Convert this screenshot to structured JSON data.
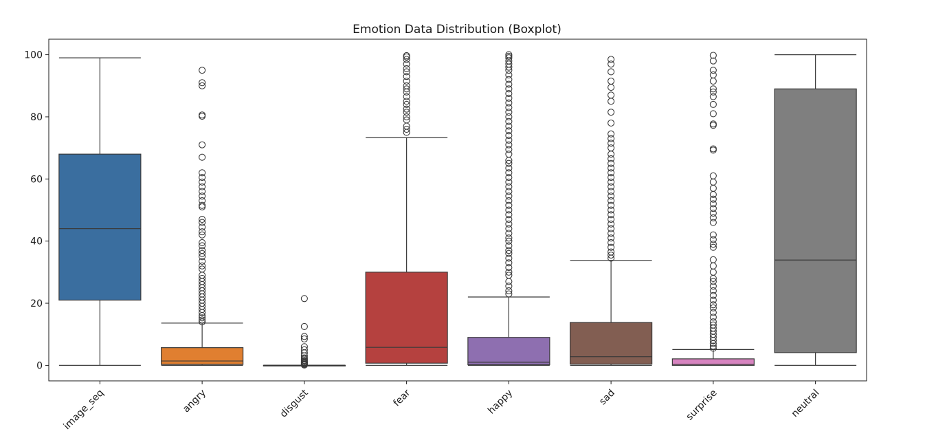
{
  "chart_data": {
    "type": "boxplot",
    "title": "Emotion Data Distribution (Boxplot)",
    "xlabel": "",
    "ylabel": "",
    "ylim": [
      -5,
      105
    ],
    "yticks": [
      0,
      20,
      40,
      60,
      80,
      100
    ],
    "grid": false,
    "categories": [
      "image_seq",
      "angry",
      "disgust",
      "fear",
      "happy",
      "sad",
      "surprise",
      "neutral"
    ],
    "colors": [
      "#3a6e9f",
      "#e07f30",
      "#3f9a3f",
      "#b5413f",
      "#8e6fb0",
      "#825e52",
      "#d784c0",
      "#7f7f7f"
    ],
    "boxes": [
      {
        "name": "image_seq",
        "whisker_low": 0,
        "q1": 21,
        "median": 44,
        "q3": 68,
        "whisker_high": 99,
        "outliers": []
      },
      {
        "name": "angry",
        "whisker_low": 0,
        "q1": 0.3,
        "median": 1.4,
        "q3": 5.7,
        "whisker_high": 13.6,
        "outliers": [
          14.0,
          14.6,
          15.3,
          16.0,
          17.0,
          18.0,
          19.0,
          20.0,
          21.0,
          22.0,
          23.0,
          24.0,
          25.0,
          26.0,
          27.0,
          28.0,
          29.0,
          31.0,
          32.0,
          33.5,
          35.0,
          36.0,
          37.0,
          38.5,
          39.5,
          42.0,
          43.0,
          44.5,
          46.0,
          47.0,
          51.0,
          51.5,
          53.0,
          54.5,
          56.0,
          57.5,
          59.0,
          60.5,
          62.0,
          67.0,
          71.0,
          80.2,
          80.6,
          90.0,
          91.0,
          95.0
        ]
      },
      {
        "name": "disgust",
        "whisker_low": 0,
        "q1": 0,
        "median": 0,
        "q3": 0,
        "whisker_high": 0,
        "outliers": [
          0.1,
          0.3,
          0.5,
          0.8,
          1.0,
          1.3,
          1.6,
          2.0,
          2.4,
          3.0,
          4.0,
          5.0,
          6.0,
          8.5,
          9.3,
          12.5,
          21.5
        ]
      },
      {
        "name": "fear",
        "whisker_low": 0,
        "q1": 0.7,
        "median": 5.8,
        "q3": 30,
        "whisker_high": 73.3,
        "outliers": [
          75.0,
          76.0,
          77.0,
          79.0,
          80.0,
          81.5,
          82.5,
          84.0,
          85.0,
          86.5,
          88.0,
          89.0,
          90.0,
          91.5,
          93.0,
          94.5,
          95.5,
          97.0,
          98.5,
          99.3,
          99.7
        ]
      },
      {
        "name": "happy",
        "whisker_low": 0,
        "q1": 0.2,
        "median": 1.0,
        "q3": 9.0,
        "whisker_high": 22.0,
        "outliers": [
          23.0,
          24.0,
          25.5,
          27.0,
          29.0,
          30.0,
          31.5,
          33.0,
          34.5,
          36.0,
          37.0,
          38.5,
          40.0,
          41.0,
          42.5,
          44.0,
          45.5,
          47.0,
          48.5,
          50.0,
          51.5,
          53.0,
          54.5,
          56.0,
          57.5,
          59.0,
          60.5,
          62.0,
          63.5,
          65.0,
          66.0,
          68.0,
          69.5,
          71.0,
          72.5,
          74.0,
          75.5,
          77.0,
          78.5,
          80.0,
          81.5,
          83.0,
          84.5,
          86.0,
          87.5,
          89.0,
          90.5,
          92.0,
          93.5,
          95.0,
          96.0,
          97.0,
          98.0,
          99.0,
          99.5,
          100.0
        ]
      },
      {
        "name": "sad",
        "whisker_low": 0,
        "q1": 0.4,
        "median": 2.8,
        "q3": 13.8,
        "whisker_high": 33.8,
        "outliers": [
          34.5,
          35.5,
          36.5,
          38.0,
          39.5,
          41.0,
          42.5,
          44.0,
          45.5,
          47.0,
          48.5,
          50.0,
          51.5,
          53.0,
          54.5,
          56.0,
          57.5,
          59.0,
          60.5,
          62.0,
          63.5,
          65.0,
          66.5,
          68.0,
          70.0,
          71.5,
          73.0,
          74.5,
          78.0,
          81.5,
          85.0,
          87.0,
          89.5,
          91.5,
          94.5,
          97.0,
          98.5
        ]
      },
      {
        "name": "surprise",
        "whisker_low": 0,
        "q1": 0,
        "median": 0.3,
        "q3": 2.1,
        "whisker_high": 5.1,
        "outliers": [
          5.5,
          6.2,
          7.0,
          8.0,
          9.0,
          10.0,
          11.0,
          12.0,
          13.0,
          14.0,
          15.5,
          17.0,
          18.5,
          19.5,
          21.0,
          22.5,
          24.0,
          25.5,
          27.0,
          28.0,
          30.0,
          32.0,
          34.0,
          38.0,
          39.0,
          40.5,
          42.0,
          46.0,
          47.5,
          49.0,
          50.5,
          52.0,
          53.5,
          55.0,
          57.0,
          59.0,
          61.0,
          69.3,
          69.7,
          77.3,
          77.7,
          81.0,
          84.0,
          86.5,
          88.0,
          89.0,
          91.5,
          93.5,
          95.0,
          98.0,
          99.8
        ]
      },
      {
        "name": "neutral",
        "whisker_low": 0,
        "q1": 4.1,
        "median": 33.9,
        "q3": 89.0,
        "whisker_high": 100,
        "outliers": []
      }
    ]
  }
}
